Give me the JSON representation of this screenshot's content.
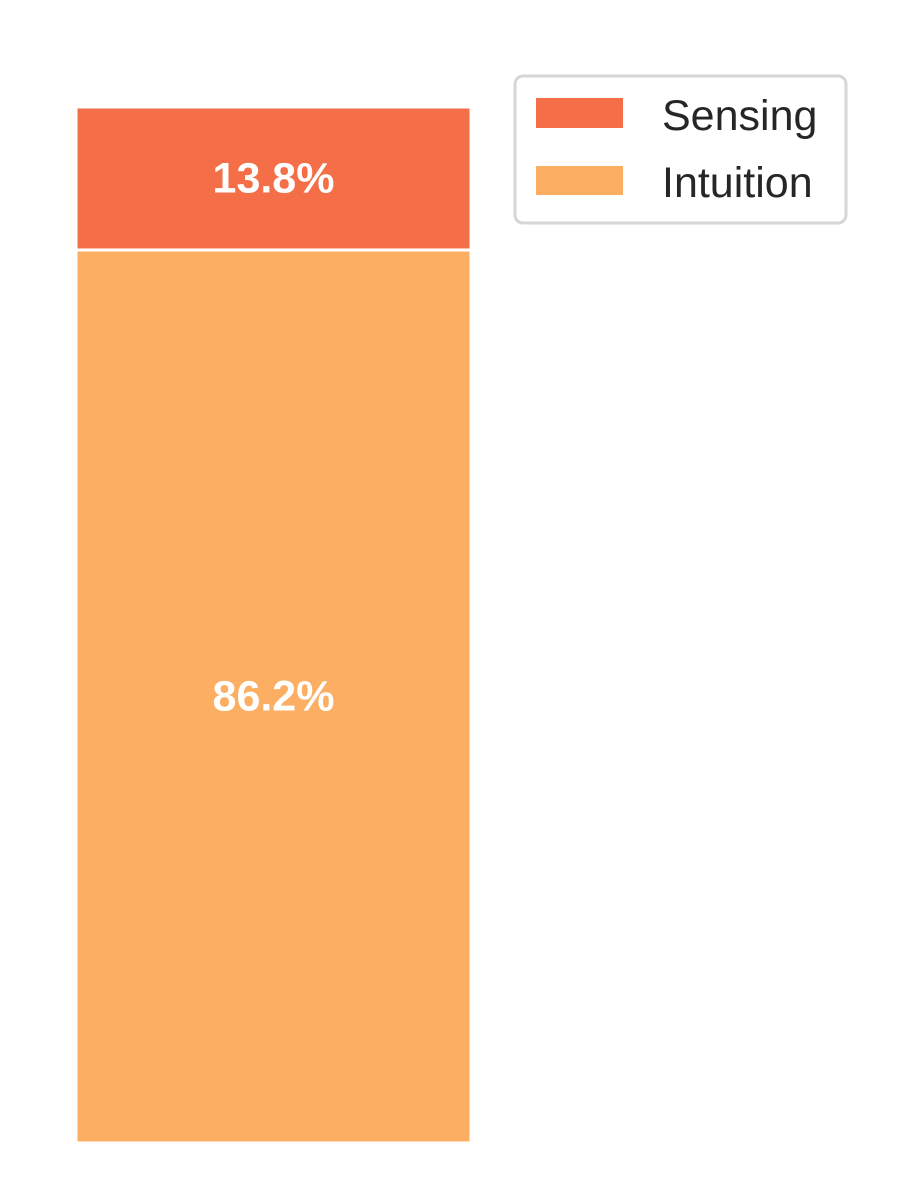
{
  "chart_data": {
    "type": "bar",
    "stacked": true,
    "orientation": "vertical",
    "title": "",
    "xlabel": "",
    "ylabel": "",
    "ylim": [
      0,
      100
    ],
    "grid": false,
    "legend_position": "top-right",
    "series": [
      {
        "name": "Intuition",
        "values": [
          86.2
        ],
        "label": "86.2%",
        "color": "#fcaf63"
      },
      {
        "name": "Sensing",
        "values": [
          13.8
        ],
        "label": "13.8%",
        "color": "#f46f47"
      }
    ]
  }
}
